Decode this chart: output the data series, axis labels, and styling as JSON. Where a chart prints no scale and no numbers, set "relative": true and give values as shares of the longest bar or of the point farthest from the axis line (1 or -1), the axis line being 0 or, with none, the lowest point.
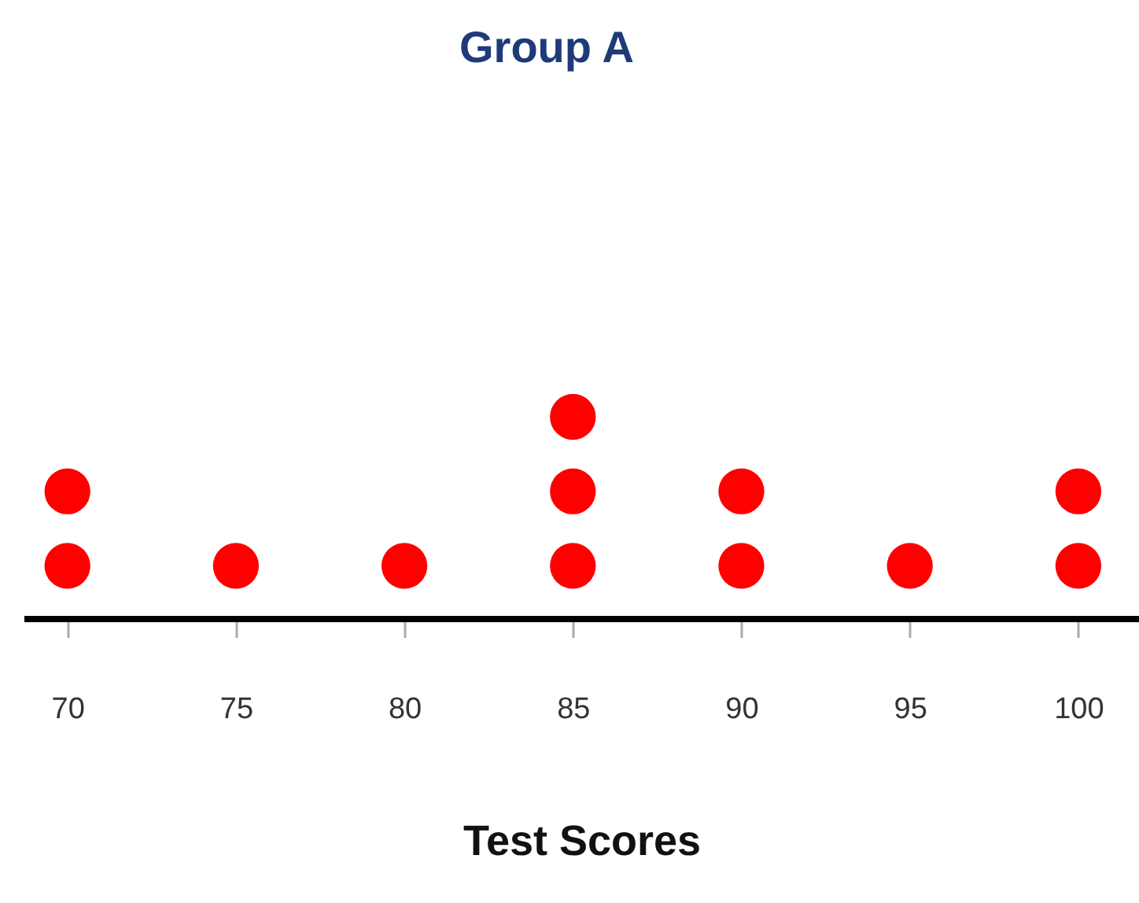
{
  "chart_data": {
    "type": "scatter",
    "title": "Group A",
    "xlabel": "Test Scores",
    "relative": true,
    "marker": "circle",
    "grid": false,
    "legend": false,
    "xlim": [
      68.7,
      101.8
    ],
    "xticks": [
      70,
      75,
      80,
      85,
      90,
      95,
      100
    ],
    "series": [
      {
        "color": "#ff0000",
        "x": [
          70,
          70,
          75,
          80,
          85,
          85,
          85,
          90,
          90,
          95,
          100,
          100
        ],
        "values": [
          0.26,
          0.63,
          0.26,
          0.26,
          0.26,
          0.63,
          1,
          0.26,
          0.63,
          0.26,
          0.26,
          0.63
        ]
      }
    ]
  }
}
